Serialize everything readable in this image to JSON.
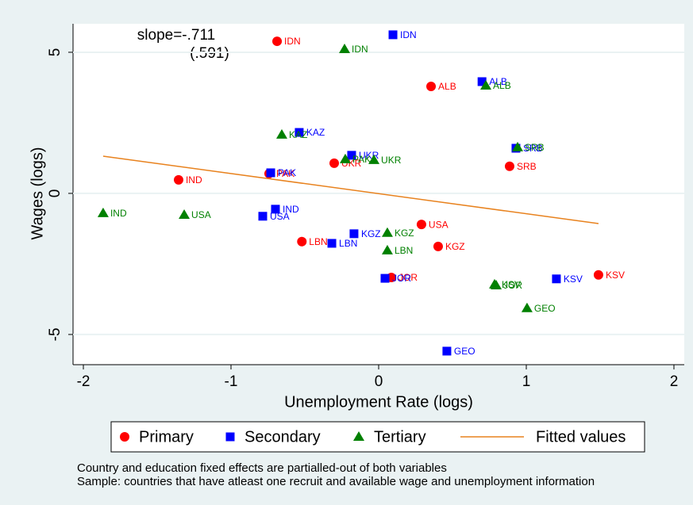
{
  "chart_data": {
    "type": "scatter",
    "x_label": "Unemployment Rate (logs)",
    "y_label": "Wages (logs)",
    "annotations": [
      "slope=-.711",
      "(.591)"
    ],
    "notes": [
      "Country and education fixed effects are partialled-out of both variables",
      "Sample: countries that have atleast one recruit and available wage and unemployment information"
    ],
    "xlim": [
      -2.07,
      2.07
    ],
    "ylim": [
      -6.07,
      6.01
    ],
    "xticks": [
      -2,
      -1,
      0,
      1,
      2
    ],
    "yticks": [
      -5,
      0,
      5
    ],
    "grid": true,
    "legend": "bottom",
    "series": [
      {
        "name": "Primary",
        "color": "#ff0000",
        "marker": "circle",
        "labels": [
          "IDN",
          "ALB",
          "IND",
          "PAK",
          "UKR",
          "SRB",
          "USA",
          "LBN",
          "KGZ",
          "JOR",
          "KSV"
        ],
        "x": [
          -0.688,
          0.355,
          -1.355,
          -0.742,
          -0.301,
          0.887,
          0.29,
          -0.52,
          0.403,
          0.086,
          1.489
        ],
        "values": [
          5.39,
          3.79,
          0.48,
          0.7,
          1.07,
          0.96,
          -1.1,
          -1.71,
          -1.88,
          -2.98,
          -2.89
        ]
      },
      {
        "name": "Secondary",
        "color": "#0000ff",
        "marker": "square",
        "labels": [
          "IDN",
          "ALB",
          "KAZ",
          "UKR",
          "SRB",
          "PAK",
          "IND",
          "USA",
          "KGZ",
          "LBN",
          "JOR",
          "KSV",
          "GEO"
        ],
        "x": [
          0.097,
          0.7,
          -0.538,
          -0.183,
          0.93,
          -0.731,
          -0.699,
          -0.785,
          -0.167,
          -0.317,
          0.043,
          1.204,
          0.462
        ],
        "values": [
          5.62,
          3.96,
          2.16,
          1.35,
          1.6,
          0.73,
          -0.56,
          -0.81,
          -1.43,
          -1.77,
          -3.01,
          -3.03,
          -5.59
        ]
      },
      {
        "name": "Tertiary",
        "color": "#008000",
        "marker": "triangle",
        "labels": [
          "IDN",
          "ALB",
          "KAZ",
          "UKR",
          "PAK",
          "SRB",
          "IND",
          "USA",
          "KGZ",
          "LBN",
          "KSV",
          "JOR",
          "GEO"
        ],
        "x": [
          -0.231,
          0.726,
          -0.656,
          -0.032,
          -0.226,
          0.941,
          -1.866,
          -1.317,
          0.059,
          0.059,
          0.785,
          0.796,
          1.005
        ],
        "values": [
          5.11,
          3.82,
          2.08,
          1.18,
          1.21,
          1.63,
          -0.7,
          -0.76,
          -1.4,
          -2.02,
          -3.23,
          -3.26,
          -4.07
        ]
      },
      {
        "name": "Fitted values",
        "color": "#e8821e",
        "marker": "line",
        "x": [
          -1.866,
          1.489
        ],
        "values": [
          1.32,
          -1.07
        ]
      }
    ]
  }
}
